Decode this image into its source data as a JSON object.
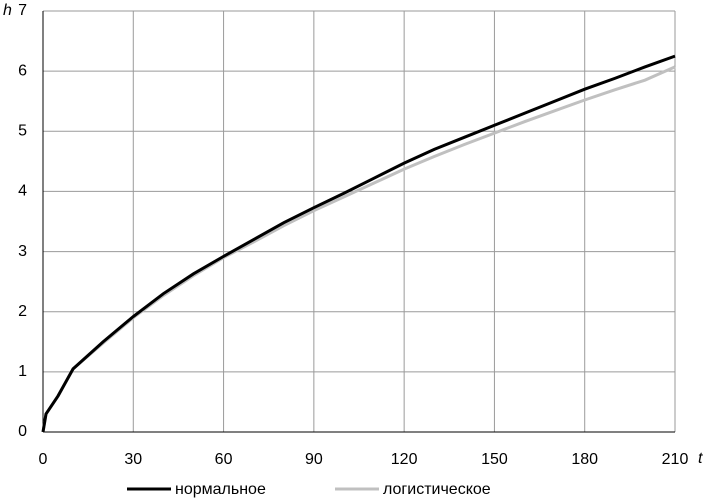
{
  "chart_data": {
    "type": "line",
    "x_label": "t",
    "y_label": "h",
    "x": [
      0,
      1,
      5,
      10,
      20,
      30,
      40,
      50,
      60,
      70,
      80,
      90,
      100,
      110,
      120,
      130,
      140,
      150,
      160,
      170,
      180,
      190,
      200,
      210
    ],
    "series": [
      {
        "name": "нормальное",
        "color": "#000000",
        "values": [
          0,
          0.3,
          0.6,
          1.05,
          1.5,
          1.92,
          2.3,
          2.63,
          2.92,
          3.2,
          3.48,
          3.73,
          3.97,
          4.22,
          4.47,
          4.7,
          4.9,
          5.1,
          5.3,
          5.5,
          5.7,
          5.88,
          6.07,
          6.25
        ]
      },
      {
        "name": "логистическое",
        "color": "#c0c0c0",
        "values": [
          0,
          0.3,
          0.6,
          1.05,
          1.48,
          1.9,
          2.27,
          2.6,
          2.9,
          3.16,
          3.43,
          3.68,
          3.91,
          4.14,
          4.37,
          4.58,
          4.78,
          4.97,
          5.16,
          5.34,
          5.52,
          5.69,
          5.85,
          6.07
        ]
      }
    ],
    "xlim": [
      0,
      210
    ],
    "xticks": [
      0,
      30,
      60,
      90,
      120,
      150,
      180,
      210
    ],
    "ylim": [
      0,
      7
    ],
    "yticks": [
      0,
      1,
      2,
      3,
      4,
      5,
      6,
      7
    ],
    "grid": true,
    "legend": "bottom"
  }
}
